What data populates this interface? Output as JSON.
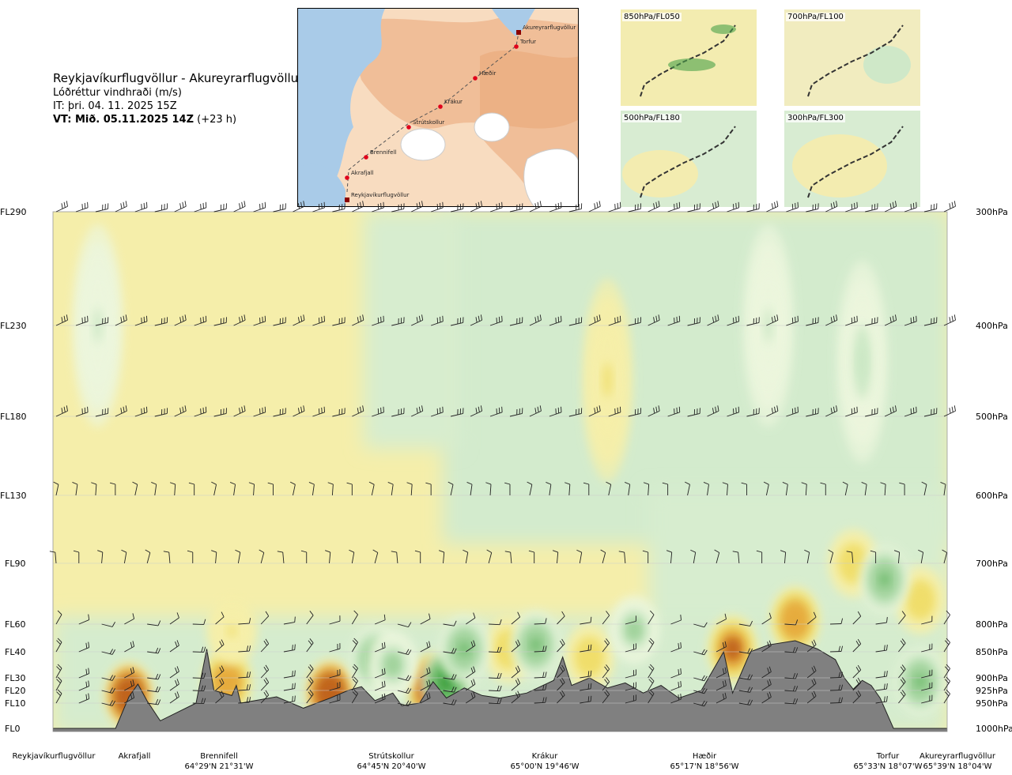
{
  "title": {
    "route": "Reykjavíkurflugvöllur - Akureyrarflugvöllur",
    "product": "Lóðréttur vindhraði (m/s)",
    "issue_time": "IT: þri. 04. 11. 2025 15Z",
    "valid_prefix": "VT: Mið. 05.11.2025 14Z",
    "valid_offset": "(+23 h)"
  },
  "map": {
    "waypoints": [
      "Reykjavíkurflugvöllur",
      "Akrafjall",
      "Brennifell",
      "Strútskollur",
      "Krákur",
      "Hæðir",
      "Torfur",
      "Akureyrarflugvöllur"
    ],
    "colors": {
      "sea": "#a9cbe8",
      "land_low": "#f8dcc0",
      "land_high": "#e9a576",
      "glacier": "#ffffff",
      "route": "#555555",
      "waypoint": "#e0001b"
    }
  },
  "mini_maps": [
    {
      "label": "850hPa/FL050"
    },
    {
      "label": "700hPa/FL100"
    },
    {
      "label": "500hPa/FL180"
    },
    {
      "label": "300hPa/FL300"
    }
  ],
  "chart_data": {
    "type": "heatmap",
    "title": "Reykjavíkurflugvöllur - Akureyrarflugvöllur",
    "variable": "Lóðréttur vindhraði (m/s)",
    "x_stations": [
      {
        "name": "Reykjavíkurflugvöllur",
        "coord": "",
        "dist": 0.0
      },
      {
        "name": "Akrafjall",
        "coord": "",
        "dist": 0.09
      },
      {
        "name": "Brennifell",
        "coord": "64°29'N 21°31'W",
        "dist": 0.185
      },
      {
        "name": "Strútskollur",
        "coord": "64°45'N 20°40'W",
        "dist": 0.378
      },
      {
        "name": "Krákur",
        "coord": "65°00'N 19°46'W",
        "dist": 0.57
      },
      {
        "name": "Hæðir",
        "coord": "65°17'N 18°56'W",
        "dist": 0.76
      },
      {
        "name": "Torfur",
        "coord": "65°33'N 18°07'W",
        "dist": 0.95
      },
      {
        "name": "Akureyrarflugvöllur",
        "coord": "65°39'N 18°04'W",
        "dist": 1.0
      }
    ],
    "left_axis": [
      "FL290",
      "FL230",
      "FL180",
      "FL130",
      "FL90",
      "FL60",
      "FL40",
      "FL30",
      "FL20",
      "FL10",
      "FL0"
    ],
    "right_axis": [
      "300hPa",
      "400hPa",
      "500hPa",
      "600hPa",
      "700hPa",
      "800hPa",
      "850hPa",
      "900hPa",
      "925hPa",
      "950hPa",
      "1000hPa"
    ],
    "pressure_levels_hpa": [
      300,
      400,
      500,
      600,
      700,
      800,
      850,
      900,
      925,
      950,
      1000
    ],
    "terrain_height_fl": [
      [
        0.0,
        0
      ],
      [
        0.07,
        0
      ],
      [
        0.085,
        15
      ],
      [
        0.095,
        25
      ],
      [
        0.105,
        12
      ],
      [
        0.12,
        3
      ],
      [
        0.16,
        10
      ],
      [
        0.172,
        42
      ],
      [
        0.18,
        20
      ],
      [
        0.2,
        16
      ],
      [
        0.205,
        24
      ],
      [
        0.21,
        10
      ],
      [
        0.25,
        15
      ],
      [
        0.28,
        8
      ],
      [
        0.31,
        14
      ],
      [
        0.33,
        20
      ],
      [
        0.345,
        23
      ],
      [
        0.36,
        12
      ],
      [
        0.38,
        18
      ],
      [
        0.39,
        9
      ],
      [
        0.41,
        10
      ],
      [
        0.425,
        27
      ],
      [
        0.44,
        14
      ],
      [
        0.46,
        22
      ],
      [
        0.48,
        16
      ],
      [
        0.5,
        14
      ],
      [
        0.53,
        18
      ],
      [
        0.56,
        28
      ],
      [
        0.57,
        38
      ],
      [
        0.58,
        24
      ],
      [
        0.6,
        30
      ],
      [
        0.62,
        22
      ],
      [
        0.64,
        26
      ],
      [
        0.66,
        18
      ],
      [
        0.68,
        24
      ],
      [
        0.7,
        14
      ],
      [
        0.725,
        20
      ],
      [
        0.74,
        34
      ],
      [
        0.75,
        40
      ],
      [
        0.76,
        18
      ],
      [
        0.78,
        40
      ],
      [
        0.8,
        45
      ],
      [
        0.83,
        48
      ],
      [
        0.855,
        42
      ],
      [
        0.875,
        37
      ],
      [
        0.885,
        30
      ],
      [
        0.895,
        21
      ],
      [
        0.905,
        28
      ],
      [
        0.915,
        24
      ],
      [
        0.925,
        14
      ],
      [
        0.94,
        0
      ],
      [
        0.96,
        0
      ],
      [
        1.0,
        0
      ]
    ],
    "updrafts": [
      {
        "x": 0.085,
        "fl": 16,
        "value": 2.0
      },
      {
        "x": 0.195,
        "fl": 27,
        "value": 1.0
      },
      {
        "x": 0.31,
        "fl": 18,
        "value": 2.0
      },
      {
        "x": 0.425,
        "fl": 22,
        "value": 2.5
      },
      {
        "x": 0.51,
        "fl": 42,
        "value": 0.5
      },
      {
        "x": 0.6,
        "fl": 38,
        "value": 0.5
      },
      {
        "x": 0.76,
        "fl": 42,
        "value": 1.5
      },
      {
        "x": 0.83,
        "fl": 62,
        "value": 1.0
      },
      {
        "x": 0.895,
        "fl": 90,
        "value": 0.5
      },
      {
        "x": 0.97,
        "fl": 72,
        "value": 0.5
      },
      {
        "x": 0.2,
        "fl": 55,
        "value": 0.3
      },
      {
        "x": 0.62,
        "fl": 200,
        "value": 0.3
      }
    ],
    "downdrafts": [
      {
        "x": 0.36,
        "fl": 37,
        "value": -1.0
      },
      {
        "x": 0.38,
        "fl": 35,
        "value": -0.8
      },
      {
        "x": 0.44,
        "fl": 27,
        "value": -2.0
      },
      {
        "x": 0.46,
        "fl": 42,
        "value": -1.2
      },
      {
        "x": 0.54,
        "fl": 45,
        "value": -1.0
      },
      {
        "x": 0.65,
        "fl": 56,
        "value": -0.8
      },
      {
        "x": 0.93,
        "fl": 82,
        "value": -1.0
      },
      {
        "x": 0.97,
        "fl": 27,
        "value": -1.2
      },
      {
        "x": 0.905,
        "fl": 210,
        "value": -0.4
      },
      {
        "x": 0.8,
        "fl": 230,
        "value": -0.3
      },
      {
        "x": 0.05,
        "fl": 230,
        "value": -0.3
      }
    ],
    "color_scale": {
      "levels": [
        -2,
        -1,
        -0.5,
        -0.25,
        -0.1,
        0.1,
        0.25,
        0.5,
        1,
        2
      ],
      "colors": [
        "#1e8a24",
        "#5db35b",
        "#9fd19a",
        "#cbe8c5",
        "#ecf6dd",
        "#ffffff",
        "#f6efa9",
        "#f0de6a",
        "#e6ab3c",
        "#c0641e",
        "#6e2d0e"
      ]
    },
    "barb_levels_fl": [
      290,
      230,
      180,
      130,
      90,
      60,
      40,
      30,
      20,
      10
    ]
  }
}
